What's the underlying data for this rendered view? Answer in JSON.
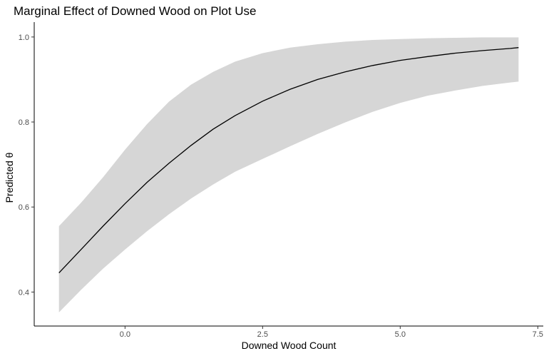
{
  "chart_data": {
    "type": "line",
    "title": "Marginal Effect of Downed Wood on Plot Use",
    "xlabel": "Downed Wood Count",
    "ylabel": "Predicted θ",
    "xlim": [
      -1.65,
      7.6
    ],
    "ylim": [
      0.32,
      1.035
    ],
    "x_ticks": [
      0.0,
      2.5,
      5.0,
      7.5
    ],
    "x_tick_labels": [
      "0.0",
      "2.5",
      "5.0",
      "7.5"
    ],
    "y_ticks": [
      0.4,
      0.6,
      0.8,
      1.0
    ],
    "y_tick_labels": [
      "0.4",
      "0.6",
      "0.8",
      "1.0"
    ],
    "grid": false,
    "series": [
      {
        "x": [
          -1.2,
          -0.8,
          -0.4,
          0.0,
          0.4,
          0.8,
          1.2,
          1.6,
          2.0,
          2.5,
          3.0,
          3.5,
          4.0,
          4.5,
          5.0,
          5.5,
          6.0,
          6.5,
          7.0,
          7.15
        ],
        "y": [
          0.445,
          0.5,
          0.555,
          0.608,
          0.658,
          0.703,
          0.745,
          0.783,
          0.815,
          0.849,
          0.877,
          0.9,
          0.918,
          0.933,
          0.945,
          0.954,
          0.962,
          0.968,
          0.973,
          0.975
        ],
        "lower": [
          0.352,
          0.405,
          0.455,
          0.5,
          0.543,
          0.583,
          0.62,
          0.653,
          0.683,
          0.713,
          0.743,
          0.772,
          0.799,
          0.824,
          0.845,
          0.862,
          0.874,
          0.885,
          0.893,
          0.895
        ],
        "upper": [
          0.555,
          0.61,
          0.67,
          0.735,
          0.795,
          0.848,
          0.888,
          0.918,
          0.942,
          0.962,
          0.975,
          0.983,
          0.989,
          0.993,
          0.995,
          0.997,
          0.998,
          0.999,
          0.999,
          0.999
        ]
      }
    ],
    "colors": {
      "line": "#000000",
      "ribbon": "#d6d6d6",
      "axis": "#000000"
    }
  }
}
